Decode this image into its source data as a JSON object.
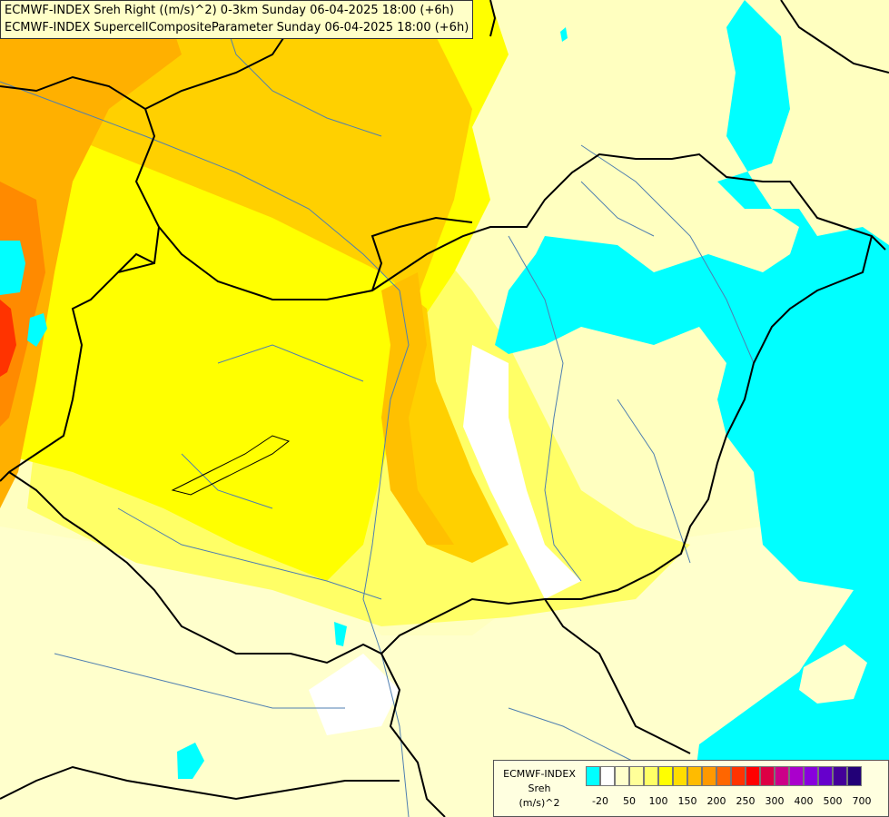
{
  "title_lines": [
    "ECMWF-INDEX Sreh Right ((m/s)^2) 0-3km Sunday 06-04-2025 18:00 (+6h)",
    "ECMWF-INDEX SupercellCompositeParameter Sunday 06-04-2025 18:00 (+6h)"
  ],
  "legend": {
    "source": "ECMWF-INDEX",
    "variable": "Sreh",
    "unit": "(m/s)^2",
    "colors": [
      "#00ffff",
      "#ffffff",
      "#ffffcc",
      "#ffff99",
      "#ffff66",
      "#ffff00",
      "#ffdd00",
      "#ffbb00",
      "#ff9900",
      "#ff6600",
      "#ff3300",
      "#ff0000",
      "#dd0044",
      "#cc0088",
      "#aa00cc",
      "#8800dd",
      "#6600cc",
      "#440099",
      "#220077"
    ],
    "ticks": [
      "-20",
      "50",
      "100",
      "150",
      "200",
      "250",
      "300",
      "400",
      "500",
      "700"
    ]
  },
  "colors": {
    "background": "#ffffc0",
    "cyan": "#00ffff",
    "orange": "#ffb000",
    "deep_orange": "#ff8a00",
    "yellow": "#ffff00",
    "light_yellow": "#ffff99",
    "pale_yellow": "#ffffcc",
    "border": "#000000",
    "river": "#4f7fb0"
  }
}
